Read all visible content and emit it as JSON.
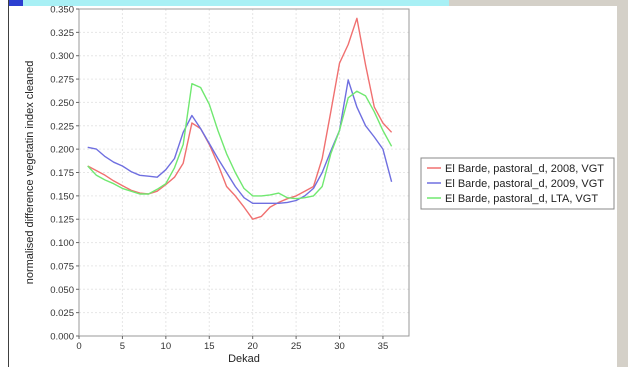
{
  "chart_data": {
    "type": "line",
    "xlabel": "Dekad",
    "ylabel": "normalised difference vegetatin index cleaned",
    "xlim": [
      0,
      38
    ],
    "ylim": [
      0,
      0.35
    ],
    "xticks": [
      "0",
      "5",
      "10",
      "15",
      "20",
      "25",
      "30",
      "35"
    ],
    "yticks": [
      "0.000",
      "0.025",
      "0.050",
      "0.075",
      "0.100",
      "0.125",
      "0.150",
      "0.175",
      "0.200",
      "0.225",
      "0.250",
      "0.275",
      "0.300",
      "0.325",
      "0.350"
    ],
    "grid": true,
    "legend_position": "right",
    "series": [
      {
        "name": "El Barde, pastoral_d, 2008, VGT",
        "color": "#f07070",
        "x": [
          1,
          2,
          3,
          4,
          5,
          6,
          7,
          8,
          9,
          10,
          11,
          12,
          13,
          14,
          15,
          16,
          17,
          18,
          19,
          20,
          21,
          22,
          23,
          24,
          25,
          26,
          27,
          28,
          29,
          30,
          31,
          32,
          33,
          34,
          35,
          36
        ],
        "y": [
          0.182,
          0.177,
          0.172,
          0.166,
          0.161,
          0.156,
          0.153,
          0.152,
          0.155,
          0.162,
          0.17,
          0.185,
          0.228,
          0.222,
          0.205,
          0.184,
          0.16,
          0.15,
          0.138,
          0.125,
          0.128,
          0.138,
          0.143,
          0.147,
          0.15,
          0.155,
          0.16,
          0.19,
          0.24,
          0.292,
          0.312,
          0.34,
          0.29,
          0.245,
          0.228,
          0.218
        ]
      },
      {
        "name": "El Barde, pastoral_d, 2009, VGT",
        "color": "#6f6fe0",
        "x": [
          1,
          2,
          3,
          4,
          5,
          6,
          7,
          8,
          9,
          10,
          11,
          12,
          13,
          14,
          15,
          16,
          17,
          18,
          19,
          20,
          21,
          22,
          23,
          24,
          25,
          26,
          27,
          28,
          29,
          30,
          31,
          32,
          33,
          34,
          35,
          36
        ],
        "y": [
          0.202,
          0.2,
          0.192,
          0.186,
          0.182,
          0.176,
          0.172,
          0.171,
          0.17,
          0.178,
          0.19,
          0.218,
          0.236,
          0.222,
          0.206,
          0.19,
          0.175,
          0.16,
          0.148,
          0.142,
          0.142,
          0.142,
          0.142,
          0.143,
          0.145,
          0.15,
          0.158,
          0.175,
          0.198,
          0.22,
          0.274,
          0.245,
          0.225,
          0.213,
          0.2,
          0.165
        ]
      },
      {
        "name": "El Barde, pastoral_d, LTA, VGT",
        "color": "#70e870",
        "x": [
          1,
          2,
          3,
          4,
          5,
          6,
          7,
          8,
          9,
          10,
          11,
          12,
          13,
          14,
          15,
          16,
          17,
          18,
          19,
          20,
          21,
          22,
          23,
          24,
          25,
          26,
          27,
          28,
          29,
          30,
          31,
          32,
          33,
          34,
          35,
          36
        ],
        "y": [
          0.182,
          0.172,
          0.167,
          0.163,
          0.158,
          0.155,
          0.152,
          0.152,
          0.157,
          0.163,
          0.18,
          0.205,
          0.27,
          0.266,
          0.248,
          0.22,
          0.195,
          0.175,
          0.158,
          0.15,
          0.15,
          0.151,
          0.153,
          0.148,
          0.147,
          0.148,
          0.15,
          0.16,
          0.195,
          0.22,
          0.255,
          0.262,
          0.257,
          0.24,
          0.22,
          0.203
        ]
      }
    ]
  }
}
